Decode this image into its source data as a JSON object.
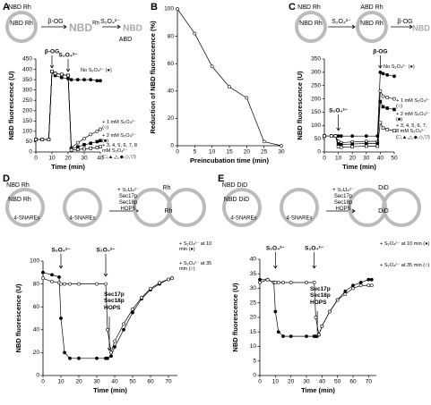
{
  "chart_data": [
    {
      "type": "line",
      "panel": "A",
      "xlabel": "Time (min)",
      "ylabel": "NBD fluorescence (U)",
      "schematic": [
        "NBD Rh",
        "NBD Rh",
        "β-OG",
        "NBD",
        "Rh",
        "S₂O₄²⁻",
        "NBD",
        "ABD"
      ],
      "x": [
        0,
        4,
        8,
        10,
        12,
        16,
        20,
        22,
        26,
        30,
        34,
        38,
        40
      ],
      "xlim": [
        0,
        40
      ],
      "xticks": [
        0,
        10,
        20,
        30,
        40
      ],
      "ylim": [
        0,
        450
      ],
      "yticks": [
        0,
        50,
        100,
        150,
        200,
        250,
        300,
        350,
        400,
        450
      ],
      "annotations": [
        {
          "text": "β-OG",
          "x": 10
        },
        {
          "text": "S₂O₄²⁻",
          "x": 20
        }
      ],
      "series": [
        {
          "name": "No S₂O₄²⁻ (●)",
          "color": "#000",
          "marker": "filled-circle",
          "values": [
            60,
            60,
            60,
            390,
            370,
            360,
            355,
            350,
            350,
            350,
            350,
            345,
            345
          ]
        },
        {
          "name": "+ 1 mM S₂O₄²⁻ (○)",
          "color": "#000",
          "marker": "open-circle",
          "values": [
            60,
            60,
            60,
            390,
            380,
            375,
            370,
            20,
            45,
            65,
            85,
            100,
            110
          ]
        },
        {
          "name": "+ 2 mM S₂O₄²⁻ (■)",
          "color": "#000",
          "marker": "filled-square",
          "values": [
            60,
            60,
            60,
            390,
            380,
            375,
            370,
            15,
            25,
            35,
            42,
            50,
            55
          ]
        },
        {
          "name": "+ 3, 4, 5, 6, 7, 8 mM S₂O₄²⁻ (□,▲,△,◆,◇,▽)",
          "color": "#000",
          "marker": "open-square",
          "values": [
            60,
            60,
            60,
            390,
            380,
            375,
            370,
            10,
            12,
            15,
            18,
            22,
            25
          ]
        }
      ]
    },
    {
      "type": "line",
      "panel": "B",
      "xlabel": "Preincubation time (min)",
      "ylabel": "Reduction of NBD fluorescence (%)",
      "schematic": [],
      "x": [
        0,
        5,
        10,
        15,
        20,
        25,
        30
      ],
      "xlim": [
        0,
        30
      ],
      "xticks": [
        0,
        5,
        10,
        15,
        20,
        25,
        30
      ],
      "ylim": [
        0,
        100
      ],
      "yticks": [
        0,
        20,
        40,
        60,
        80,
        100
      ],
      "annotations": [],
      "series": [
        {
          "name": "",
          "color": "#000",
          "marker": "open-circle",
          "values": [
            100,
            82,
            58,
            43,
            35,
            3,
            0
          ]
        }
      ]
    },
    {
      "type": "line",
      "panel": "C",
      "xlabel": "Time (min)",
      "ylabel": "NBD fluorescence (U)",
      "schematic": [
        "NBD Rh",
        "NBD Rh",
        "S₂O₄²⁻",
        "ABD Rh",
        "NBD Rh",
        "β-OG",
        "NBD"
      ],
      "x": [
        0,
        5,
        8,
        10,
        12,
        20,
        30,
        38,
        40,
        42,
        45,
        50
      ],
      "xlim": [
        0,
        50
      ],
      "xticks": [
        0,
        10,
        20,
        30,
        40,
        50
      ],
      "ylim": [
        0,
        350
      ],
      "yticks": [
        0,
        50,
        100,
        150,
        200,
        250,
        300,
        350
      ],
      "annotations": [
        {
          "text": "S₂O₄²⁻",
          "x": 10
        },
        {
          "text": "β-OG",
          "x": 40
        }
      ],
      "series": [
        {
          "name": "No S₂O₄²⁻ (●)",
          "color": "#000",
          "marker": "filled-circle",
          "values": [
            60,
            60,
            60,
            60,
            60,
            60,
            60,
            60,
            300,
            295,
            290,
            285
          ]
        },
        {
          "name": "+ 1 mM S₂O₄²⁻ (○)",
          "color": "#000",
          "marker": "open-circle",
          "values": [
            60,
            60,
            60,
            40,
            35,
            38,
            40,
            40,
            230,
            210,
            205,
            200
          ]
        },
        {
          "name": "+ 2 mM S₂O₄²⁻ (■)",
          "color": "#000",
          "marker": "filled-square",
          "values": [
            60,
            60,
            60,
            30,
            28,
            30,
            32,
            32,
            190,
            170,
            165,
            160
          ]
        },
        {
          "name": "+ 3, 4, 5, 6, 7, 8 mM S₂O₄²⁻ (□,▲,△,◆,◇,▽)",
          "color": "#000",
          "marker": "open-square",
          "values": [
            60,
            60,
            60,
            20,
            18,
            20,
            22,
            22,
            110,
            90,
            85,
            80
          ]
        }
      ]
    },
    {
      "type": "line",
      "panel": "D",
      "xlabel": "Time (min)",
      "ylabel": "NBD fluorescence (U)",
      "schematic": [
        "NBD Rh",
        "NBD Rh",
        "4-SNAREs",
        "4-SNAREs",
        "+ S₂O₄²⁻ Sec17p Sec18p HOPS",
        "Rh",
        "Rh"
      ],
      "x": [
        0,
        5,
        9,
        10,
        12,
        15,
        20,
        30,
        35,
        36,
        38,
        40,
        45,
        50,
        55,
        60,
        65,
        70,
        72
      ],
      "xlim": [
        0,
        75
      ],
      "xticks": [
        0,
        10,
        20,
        30,
        40,
        50,
        60,
        70
      ],
      "ylim": [
        0,
        100
      ],
      "yticks": [
        0,
        20,
        40,
        60,
        80,
        100
      ],
      "annotations": [
        {
          "text": "S₂O₄²⁻",
          "x": 10
        },
        {
          "text": "S₂O₄²⁻",
          "x": 35
        },
        {
          "text": "Sec17p Sec18p HOPS",
          "x": 37
        }
      ],
      "series": [
        {
          "name": "+ S₂O₄²⁻ at 10 min (●)",
          "color": "#000",
          "marker": "filled-circle",
          "values": [
            90,
            88,
            86,
            50,
            20,
            15,
            15,
            15,
            15,
            15,
            17,
            25,
            40,
            55,
            67,
            75,
            80,
            84,
            85
          ]
        },
        {
          "name": "+ S₂O₄²⁻ at 35 min (○)",
          "color": "#000",
          "marker": "open-circle",
          "values": [
            85,
            82,
            81,
            80,
            80,
            80,
            80,
            80,
            80,
            40,
            20,
            30,
            45,
            58,
            68,
            76,
            81,
            84,
            85
          ]
        }
      ]
    },
    {
      "type": "line",
      "panel": "E",
      "xlabel": "Time (min)",
      "ylabel": "NBD fluorescence (U)",
      "schematic": [
        "NBD DiD",
        "NBD DiD",
        "4-SNAREs",
        "4-SNAREs",
        "+ S₂O₄²⁻ Sec17p Sec18p HOPS",
        "DiD",
        "DiD"
      ],
      "x": [
        0,
        5,
        9,
        10,
        12,
        15,
        20,
        30,
        35,
        36,
        38,
        40,
        45,
        50,
        55,
        60,
        65,
        70,
        72
      ],
      "xlim": [
        0,
        75
      ],
      "xticks": [
        0,
        10,
        20,
        30,
        40,
        50,
        60,
        70
      ],
      "ylim": [
        0,
        40
      ],
      "yticks": [
        0,
        5,
        10,
        15,
        20,
        25,
        30,
        35,
        40
      ],
      "annotations": [
        {
          "text": "S₂O₄²⁻",
          "x": 10
        },
        {
          "text": "S₂O₄²⁻",
          "x": 35
        },
        {
          "text": "Sec17p Sec18p HOPS",
          "x": 37
        }
      ],
      "series": [
        {
          "name": "+ S₂O₄²⁻ at 10 min (●)",
          "color": "#000",
          "marker": "filled-circle",
          "values": [
            33,
            33,
            32,
            22,
            15,
            13.5,
            13.5,
            13.5,
            13.5,
            13.5,
            14,
            17,
            22,
            26,
            29,
            31,
            32,
            33,
            33
          ]
        },
        {
          "name": "+ S₂O₄²⁻ at 35 min (○)",
          "color": "#000",
          "marker": "open-circle",
          "values": [
            32,
            33,
            32,
            32,
            32,
            32,
            32,
            32,
            32,
            20,
            14,
            17,
            22,
            26,
            28,
            30,
            31,
            31,
            31
          ]
        }
      ]
    }
  ]
}
